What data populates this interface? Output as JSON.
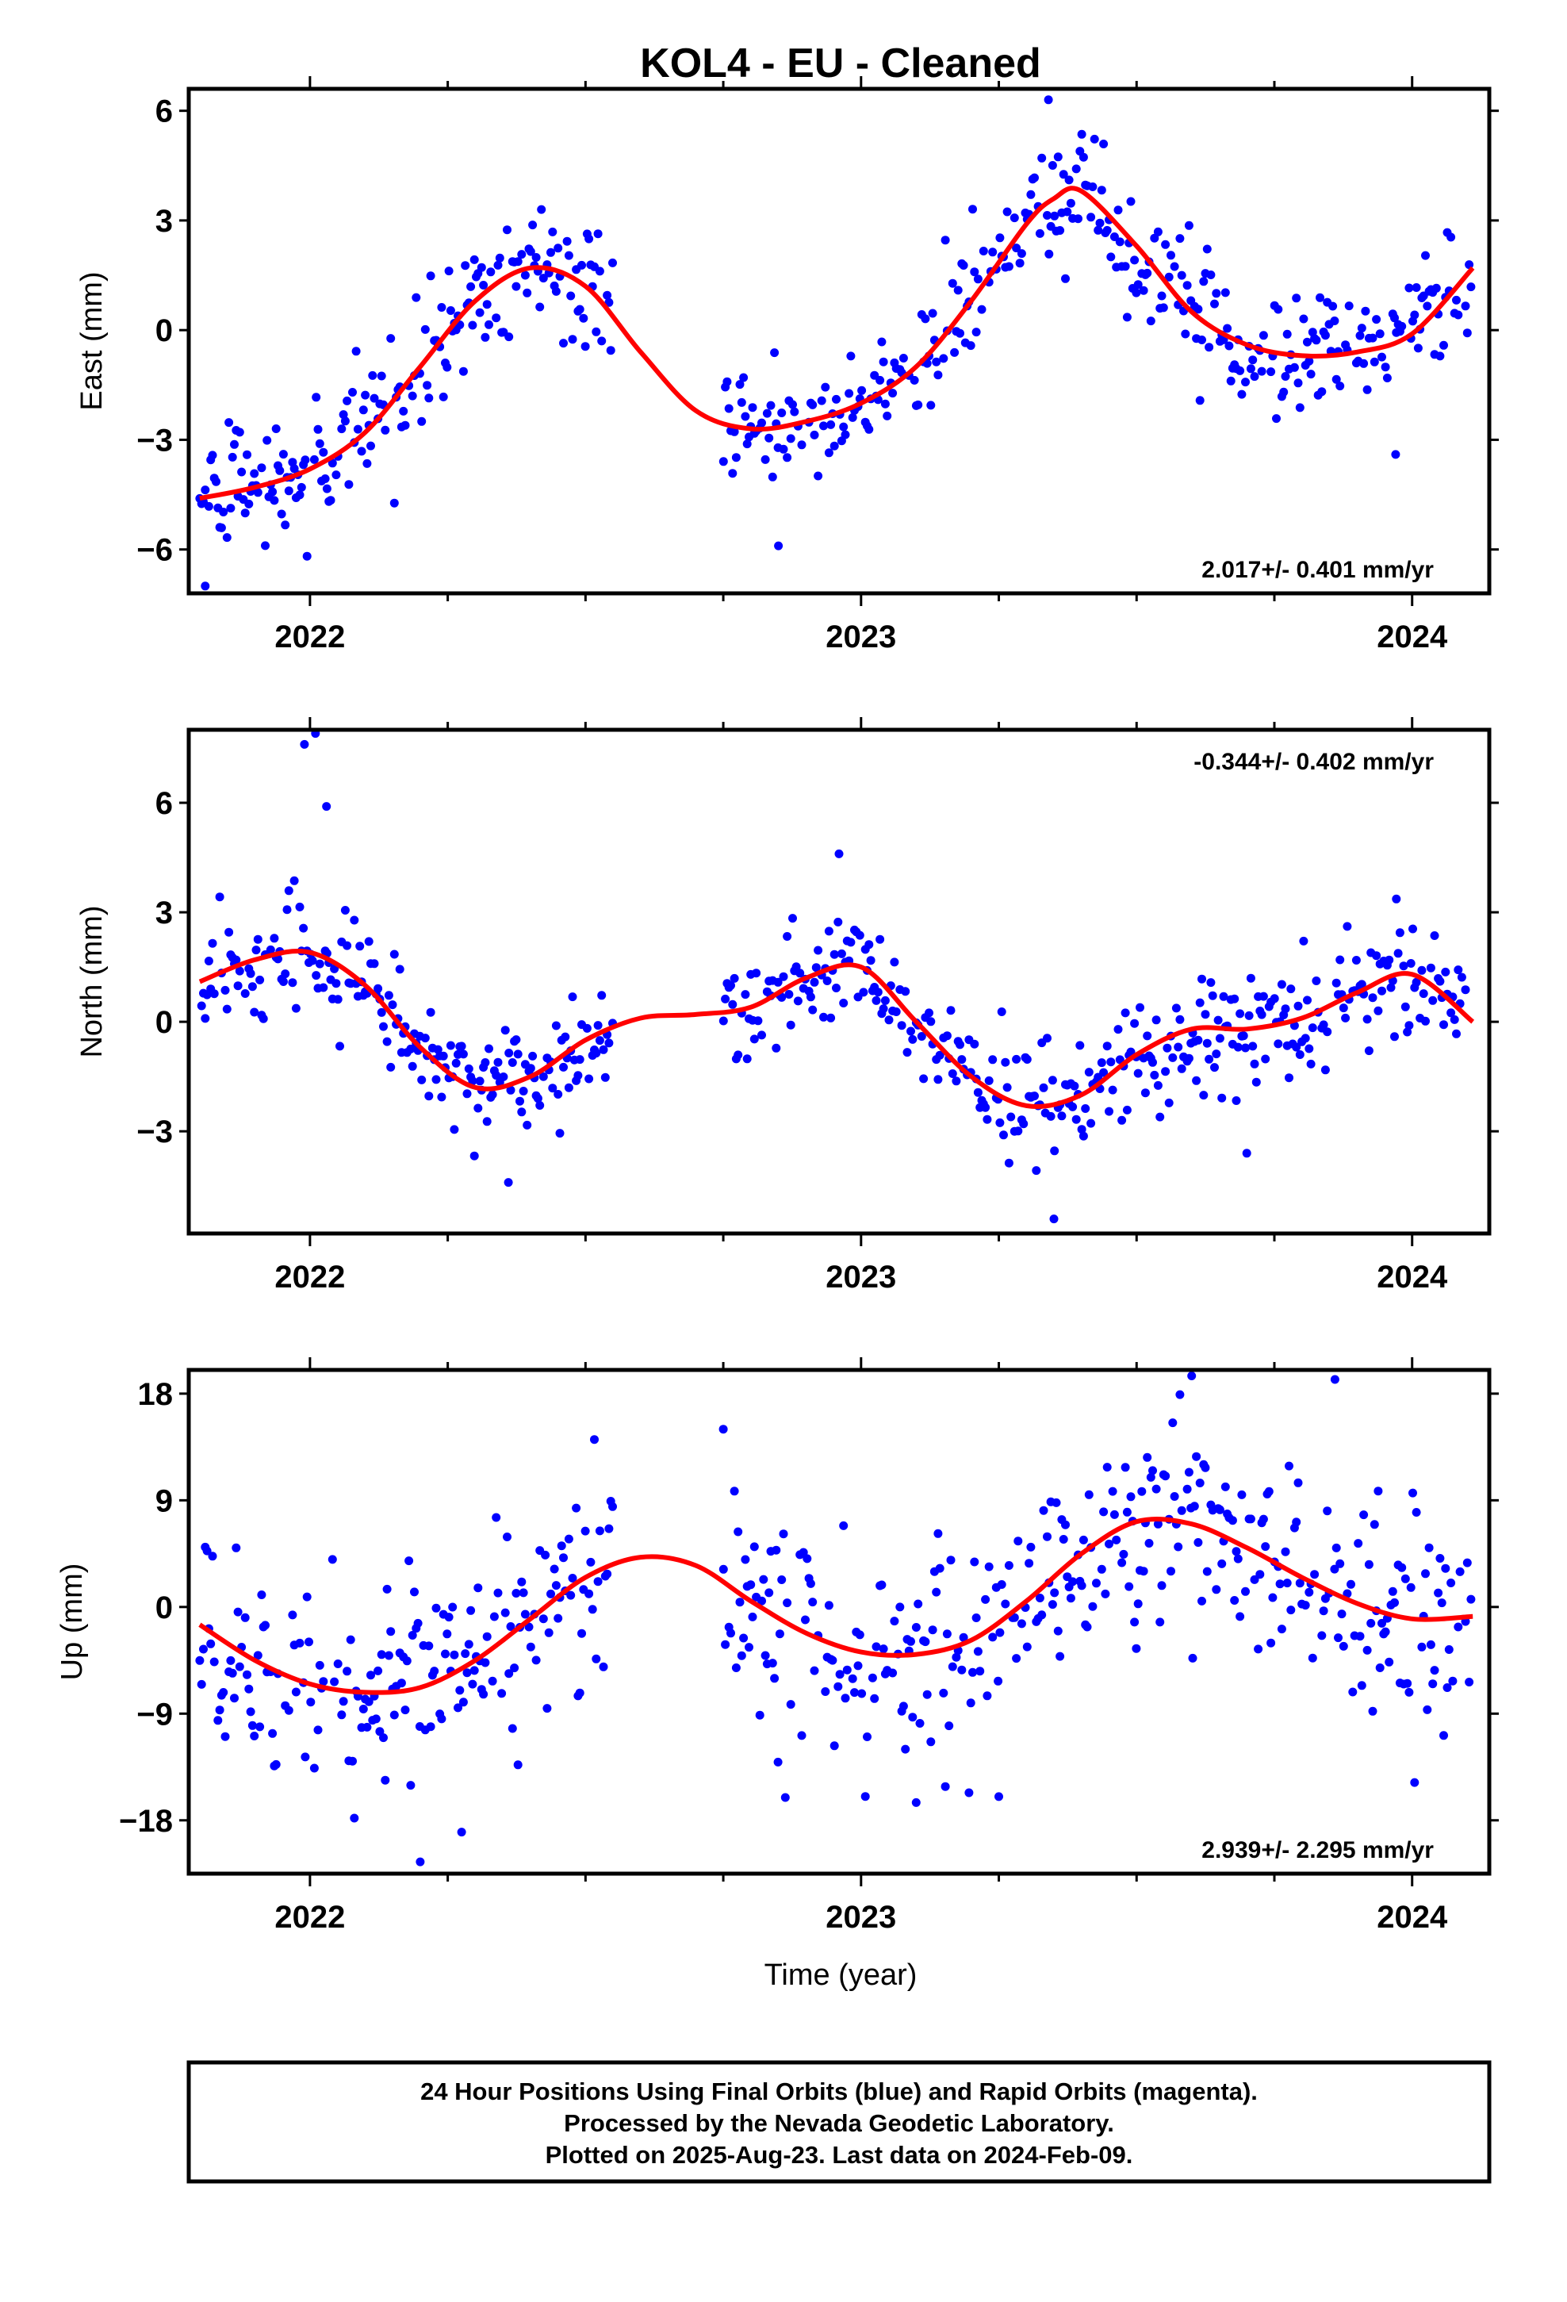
{
  "chart_data": {
    "type": "scatter",
    "title": "KOL4  - EU - Cleaned",
    "xlabel": "Time (year)",
    "xlim": [
      2021.78,
      2024.14
    ],
    "x_ticks": [
      "2022",
      "2023",
      "2024"
    ],
    "grid": false,
    "footer": [
      "24 Hour Positions Using Final Orbits (blue) and Rapid Orbits (magenta).",
      "Processed by the Nevada Geodetic Laboratory.",
      "Plotted on 2025-Aug-23. Last data on 2024-Feb-09."
    ],
    "data_range": {
      "start": 2021.8,
      "end": 2024.11,
      "gap": [
        2022.55,
        2022.75
      ]
    },
    "colors": {
      "points": "#0000ff",
      "fit": "#ff0000",
      "frame": "#000000"
    },
    "panels": [
      {
        "name": "East",
        "ylabel": "East (mm)",
        "ylim": [
          -7.2,
          6.6
        ],
        "yticks": [
          "6",
          "3",
          "0",
          "−3",
          "−6"
        ],
        "ytick_values": [
          6,
          3,
          0,
          -3,
          -6
        ],
        "rate": "2.017+/- 0.401 mm/yr",
        "rate_position": "bottom-right",
        "fit": {
          "x": [
            2021.8,
            2021.9,
            2022.0,
            2022.1,
            2022.2,
            2022.3,
            2022.4,
            2022.5,
            2022.6,
            2022.7,
            2022.8,
            2022.9,
            2023.0,
            2023.1,
            2023.2,
            2023.3,
            2023.35,
            2023.4,
            2023.5,
            2023.6,
            2023.7,
            2023.8,
            2023.9,
            2024.0,
            2024.11
          ],
          "y": [
            -4.6,
            -4.3,
            -3.8,
            -2.8,
            -1.0,
            0.8,
            1.7,
            1.2,
            -0.6,
            -2.2,
            -2.7,
            -2.5,
            -2.0,
            -1.0,
            0.8,
            2.9,
            3.6,
            3.8,
            2.3,
            0.5,
            -0.4,
            -0.7,
            -0.6,
            -0.1,
            1.7
          ]
        },
        "scatter": {
          "amplitude": 1.1,
          "outliers": [
            [
              2022.42,
              3.3
            ],
            [
              2022.85,
              -5.9
            ],
            [
              2023.34,
              6.3
            ],
            [
              2023.97,
              -3.4
            ],
            [
              2021.81,
              -7.0
            ]
          ]
        }
      },
      {
        "name": "North",
        "ylabel": "North (mm)",
        "ylim": [
          -5.8,
          8.0
        ],
        "yticks": [
          "6",
          "3",
          "0",
          "−3"
        ],
        "ytick_values": [
          6,
          3,
          0,
          -3
        ],
        "rate": "-0.344+/- 0.402 mm/yr",
        "rate_position": "top-right",
        "fit": {
          "x": [
            2021.8,
            2021.9,
            2022.0,
            2022.1,
            2022.2,
            2022.3,
            2022.4,
            2022.5,
            2022.6,
            2022.7,
            2022.8,
            2022.9,
            2023.0,
            2023.1,
            2023.2,
            2023.3,
            2023.4,
            2023.5,
            2023.6,
            2023.7,
            2023.8,
            2023.9,
            2024.0,
            2024.11
          ],
          "y": [
            1.1,
            1.7,
            1.9,
            1.0,
            -0.7,
            -1.8,
            -1.5,
            -0.5,
            0.1,
            0.2,
            0.4,
            1.2,
            1.5,
            0.0,
            -1.5,
            -2.3,
            -2.0,
            -0.9,
            -0.2,
            -0.2,
            0.1,
            0.8,
            1.3,
            0.0
          ]
        },
        "scatter": {
          "amplitude": 1.1,
          "outliers": [
            [
              2021.99,
              7.6
            ],
            [
              2022.01,
              7.9
            ],
            [
              2022.03,
              5.9
            ],
            [
              2022.96,
              4.6
            ],
            [
              2023.35,
              -5.4
            ],
            [
              2023.7,
              -3.6
            ],
            [
              2022.36,
              -4.4
            ]
          ]
        }
      },
      {
        "name": "Up",
        "ylabel": "Up (mm)",
        "ylim": [
          -22.5,
          20.0
        ],
        "yticks": [
          "18",
          "9",
          "0",
          "−9",
          "−18"
        ],
        "ytick_values": [
          18,
          9,
          0,
          -9,
          -18
        ],
        "rate": "2.939+/- 2.295 mm/yr",
        "rate_position": "bottom-right",
        "fit": {
          "x": [
            2021.8,
            2021.9,
            2022.0,
            2022.1,
            2022.2,
            2022.3,
            2022.4,
            2022.5,
            2022.6,
            2022.7,
            2022.8,
            2022.9,
            2023.0,
            2023.1,
            2023.2,
            2023.3,
            2023.4,
            2023.5,
            2023.6,
            2023.7,
            2023.8,
            2023.9,
            2024.0,
            2024.11
          ],
          "y": [
            -1.5,
            -4.5,
            -6.5,
            -7.2,
            -6.8,
            -4.5,
            -1.0,
            2.5,
            4.2,
            3.5,
            0.5,
            -2.2,
            -3.8,
            -4.0,
            -2.8,
            0.5,
            4.5,
            7.2,
            7.0,
            5.0,
            2.5,
            0.3,
            -1.0,
            -0.8
          ]
        },
        "scatter": {
          "amplitude": 6.5,
          "outliers": [
            [
              2023.6,
              19.5
            ],
            [
              2023.86,
              19.2
            ],
            [
              2022.75,
              15.0
            ],
            [
              2022.2,
              -21.5
            ],
            [
              2023.1,
              -16.5
            ],
            [
              2023.25,
              -16.0
            ]
          ]
        }
      }
    ]
  }
}
